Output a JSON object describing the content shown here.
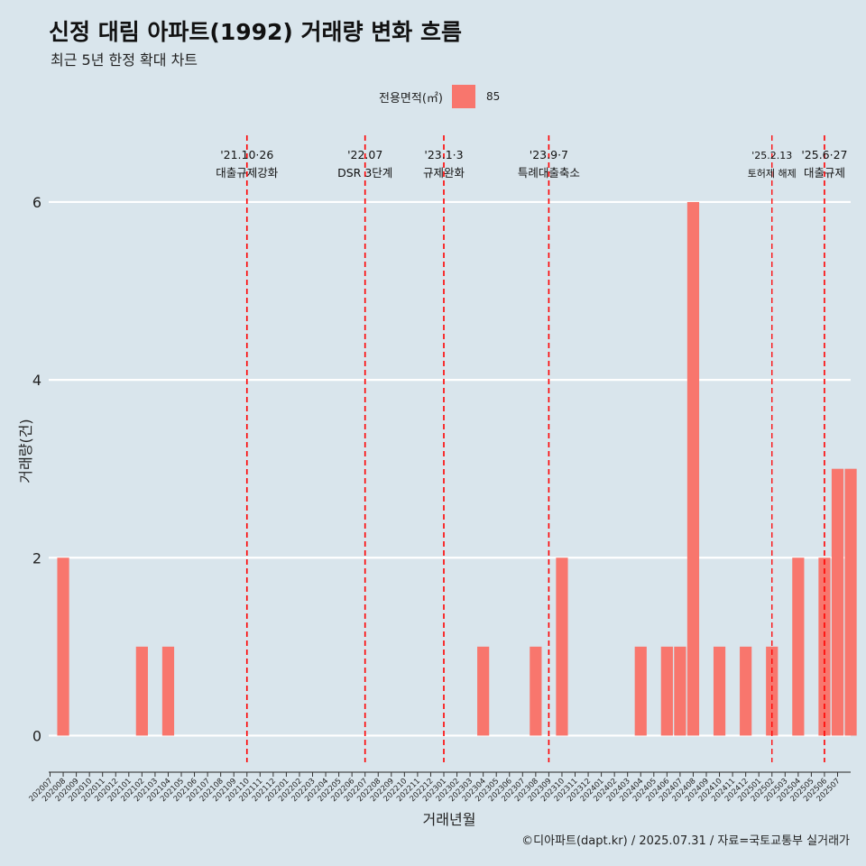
{
  "header": {
    "title": "신정 대림 아파트(1992) 거래량 변화 흐름",
    "subtitle": "최근 5년 한정 확대 차트"
  },
  "legend": {
    "title": "전용면적(㎡)",
    "items": [
      {
        "label": "85",
        "color": "#f8766d"
      }
    ]
  },
  "caption": "©디아파트(dapt.kr) / 2025.07.31 / 자료=국토교통부 실거래가",
  "chart_data": {
    "type": "bar",
    "xlabel": "거래년월",
    "ylabel": "거래량(건)",
    "ylim": [
      -0.3,
      6.75
    ],
    "yticks": [
      0,
      2,
      4,
      6
    ],
    "grid": true,
    "legend_position": "top",
    "categories": [
      "202007",
      "202008",
      "202009",
      "202010",
      "202011",
      "202012",
      "202101",
      "202102",
      "202103",
      "202104",
      "202105",
      "202106",
      "202107",
      "202108",
      "202109",
      "202110",
      "202111",
      "202112",
      "202201",
      "202202",
      "202203",
      "202204",
      "202205",
      "202206",
      "202207",
      "202208",
      "202209",
      "202210",
      "202211",
      "202212",
      "202301",
      "202302",
      "202303",
      "202304",
      "202305",
      "202306",
      "202307",
      "202308",
      "202309",
      "202310",
      "202311",
      "202312",
      "202401",
      "202402",
      "202403",
      "202404",
      "202405",
      "202406",
      "202407",
      "202408",
      "202409",
      "202410",
      "202411",
      "202412",
      "202501",
      "202502",
      "202503",
      "202504",
      "202505",
      "202506",
      "202507"
    ],
    "series": [
      {
        "name": "85",
        "color": "#f8766d",
        "points": [
          {
            "x": "202008",
            "y": 2
          },
          {
            "x": "202102",
            "y": 1
          },
          {
            "x": "202104",
            "y": 1
          },
          {
            "x": "202304",
            "y": 1
          },
          {
            "x": "202308",
            "y": 1
          },
          {
            "x": "202310",
            "y": 2
          },
          {
            "x": "202404",
            "y": 1
          },
          {
            "x": "202406",
            "y": 1
          },
          {
            "x": "202407",
            "y": 1
          },
          {
            "x": "202408",
            "y": 6
          },
          {
            "x": "202410",
            "y": 1
          },
          {
            "x": "202412",
            "y": 1
          },
          {
            "x": "202502",
            "y": 1
          },
          {
            "x": "202504",
            "y": 2
          },
          {
            "x": "202506",
            "y": 2
          },
          {
            "x": "202507",
            "y": 3
          },
          {
            "x": "202508",
            "y": 3
          }
        ]
      }
    ],
    "annotations": [
      {
        "x": "202110",
        "date": "'21.10·26",
        "label": "대출규제강화",
        "size": "normal"
      },
      {
        "x": "202207",
        "date": "'22.07",
        "label": "DSR 3단계",
        "size": "normal"
      },
      {
        "x": "202301",
        "date": "'23.1·3",
        "label": "규제완화",
        "size": "normal"
      },
      {
        "x": "202309",
        "date": "'23.9·7",
        "label": "특례대출축소",
        "size": "normal"
      },
      {
        "x": "202502",
        "date": "'25.2.13",
        "label": "토허제 해제",
        "size": "small"
      },
      {
        "x": "202506",
        "date": "'25.6·27",
        "label": "대출규제",
        "size": "normal"
      }
    ]
  }
}
